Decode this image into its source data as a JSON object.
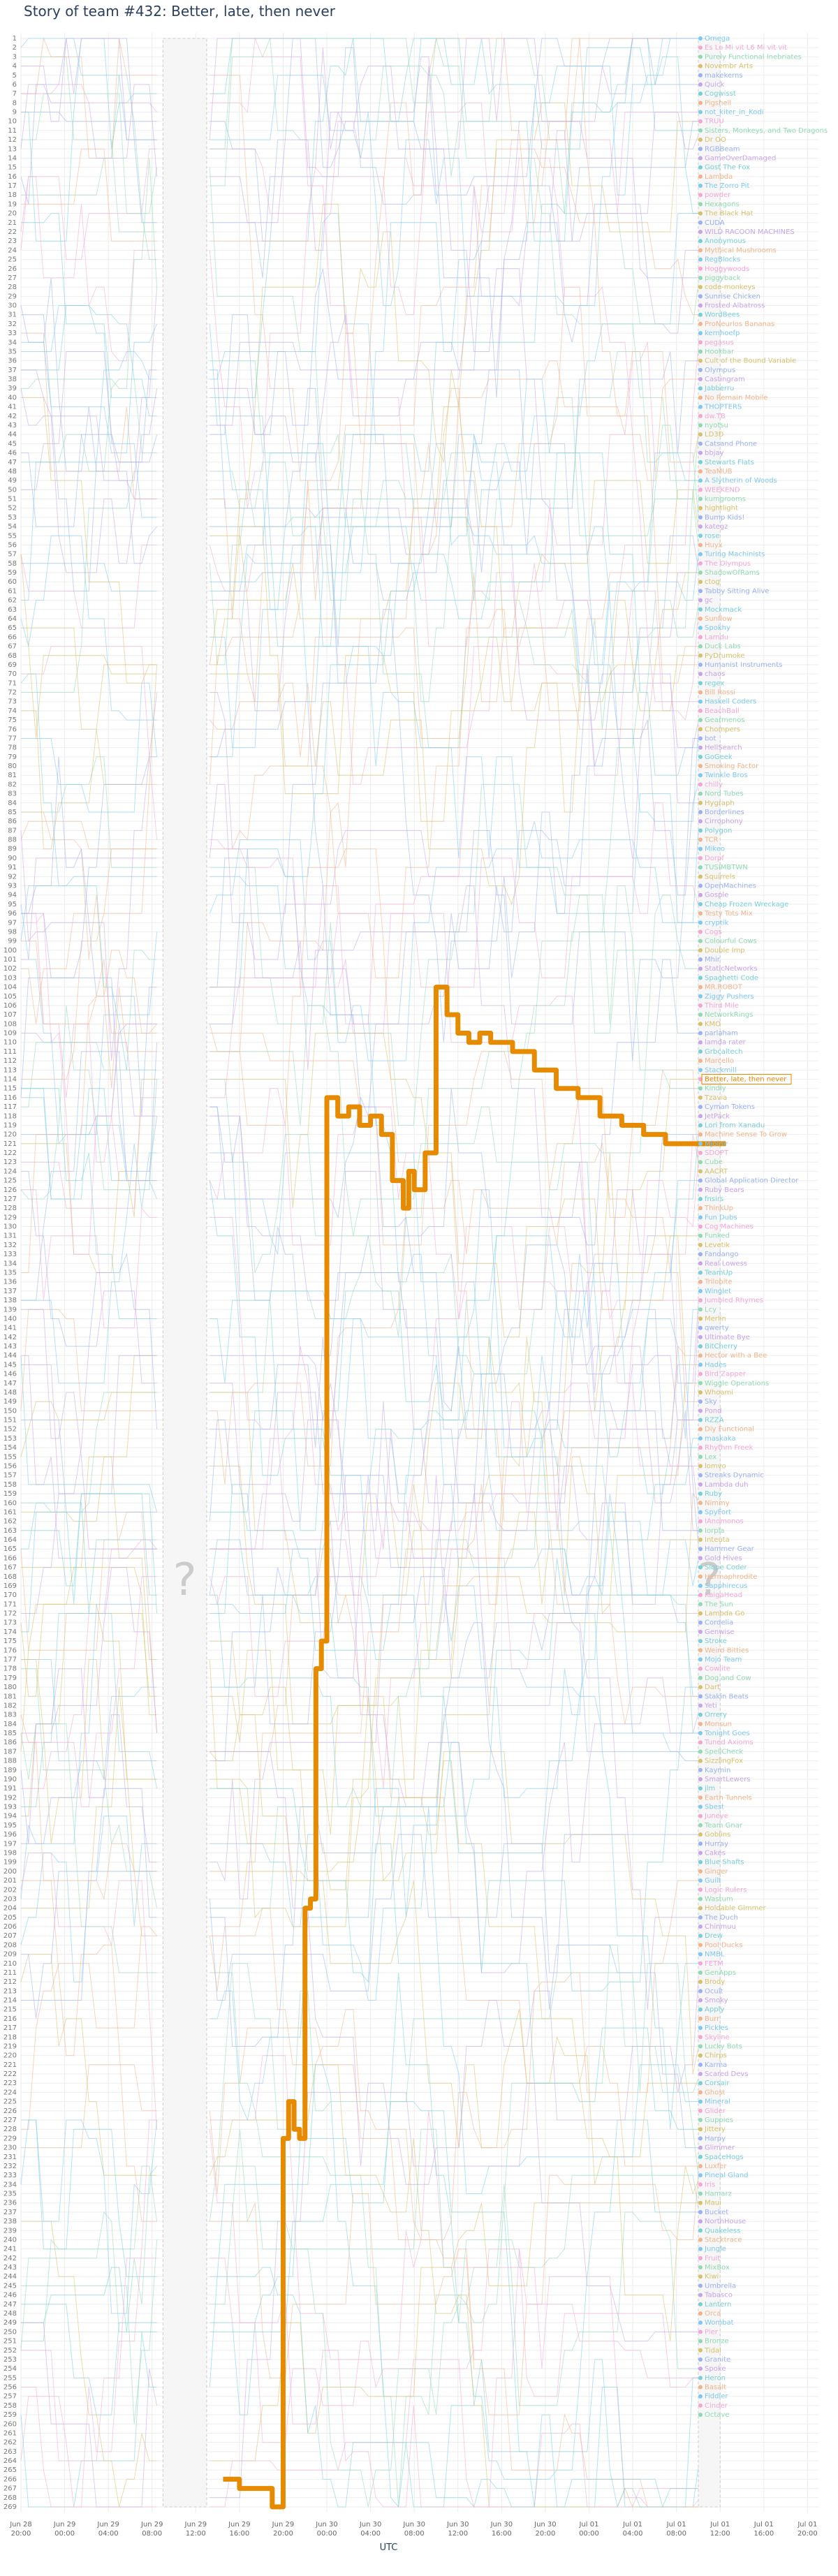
{
  "title": "Story of team #432: Better, late, then never",
  "chart_data": {
    "type": "line",
    "title": "Story of team #432: Better, late, then never",
    "xlabel": "UTC",
    "ylabel": "",
    "rank_range": [
      1,
      269
    ],
    "x_ticks": [
      "Jun 28 20:00",
      "Jun 29 00:00",
      "Jun 29 04:00",
      "Jun 29 08:00",
      "Jun 29 12:00",
      "Jun 29 16:00",
      "Jun 29 20:00",
      "Jun 30 00:00",
      "Jun 30 04:00",
      "Jun 30 08:00",
      "Jun 30 12:00",
      "Jun 30 16:00",
      "Jun 30 20:00",
      "Jul 01 00:00",
      "Jul 01 04:00",
      "Jul 01 08:00",
      "Jul 01 12:00",
      "Jul 01 16:00",
      "Jul 01 20:00"
    ],
    "x_range": [
      "Jun 28 20:00",
      "Jul 01 21:00"
    ],
    "unknown_markers": [
      {
        "label": "?",
        "from": "Jun 29 09:00",
        "to": "Jun 29 13:00"
      },
      {
        "label": "?",
        "from": "Jul 01 10:00",
        "to": "Jul 01 12:00"
      }
    ],
    "highlight": {
      "name": "Better, late, then never",
      "color": "#e68a00",
      "points": [
        [
          "Jun 29 14:30",
          266
        ],
        [
          "Jun 29 15:00",
          266
        ],
        [
          "Jun 29 16:00",
          267
        ],
        [
          "Jun 29 18:00",
          267
        ],
        [
          "Jun 29 19:00",
          269
        ],
        [
          "Jun 29 19:30",
          269
        ],
        [
          "Jun 29 20:00",
          229
        ],
        [
          "Jun 29 20:30",
          225
        ],
        [
          "Jun 29 21:00",
          228
        ],
        [
          "Jun 29 21:30",
          229
        ],
        [
          "Jun 29 22:00",
          204
        ],
        [
          "Jun 29 22:30",
          203
        ],
        [
          "Jun 29 23:00",
          178
        ],
        [
          "Jun 29 23:30",
          175
        ],
        [
          "Jun 30 00:00",
          116
        ],
        [
          "Jun 30 01:00",
          118
        ],
        [
          "Jun 30 02:00",
          117
        ],
        [
          "Jun 30 03:00",
          119
        ],
        [
          "Jun 30 04:00",
          118
        ],
        [
          "Jun 30 05:00",
          120
        ],
        [
          "Jun 30 06:00",
          125
        ],
        [
          "Jun 30 07:00",
          128
        ],
        [
          "Jun 30 07:30",
          124
        ],
        [
          "Jun 30 08:00",
          126
        ],
        [
          "Jun 30 09:00",
          122
        ],
        [
          "Jun 30 10:00",
          104
        ],
        [
          "Jun 30 11:00",
          107
        ],
        [
          "Jun 30 12:00",
          109
        ],
        [
          "Jun 30 13:00",
          110
        ],
        [
          "Jun 30 14:00",
          109
        ],
        [
          "Jun 30 15:00",
          110
        ],
        [
          "Jun 30 17:00",
          111
        ],
        [
          "Jun 30 19:00",
          113
        ],
        [
          "Jun 30 21:00",
          115
        ],
        [
          "Jun 30 23:00",
          116
        ],
        [
          "Jul 01 01:00",
          118
        ],
        [
          "Jul 01 03:00",
          119
        ],
        [
          "Jul 01 05:00",
          120
        ],
        [
          "Jul 01 07:00",
          121
        ],
        [
          "Jul 01 09:00",
          121
        ],
        [
          "Jul 01 12:30",
          121
        ]
      ]
    },
    "team_labels": [
      "Omega",
      "Es Lo Mi vit L6 Mi vit vit",
      "Purely Functional Inebriates",
      "Novembr Arts",
      "makekerns",
      "Quick",
      "Cogwisst",
      "Pigshell",
      "not_kiter_in_Kodi",
      "TRUU",
      "Sisters, Monkeys, and Two Dragons",
      "Dr OO",
      "RGBBeam",
      "GameOverDamaged",
      "Gost The Fox",
      "Lambda",
      "The Zorro Pit",
      "powder",
      "Hexagons",
      "The Black Hat",
      "CUDA",
      "WILD RACOON MACHINES",
      "Anonymous",
      "Mythical Mushrooms",
      "RegBlocks",
      "Hoggywoods",
      "piggyback",
      "code-monkeys",
      "Sunrise Chicken",
      "Frosted Albatross",
      "WordBees",
      "ProNeurlos Bananas",
      "kernhoefp",
      "pegasus",
      "Hookbar",
      "Cult of the Bound Variable",
      "Olympus",
      "Castingram",
      "Jabberru",
      "No Remain Mobile",
      "THOPTERS",
      "dw.TB",
      "nyotsu",
      "LD3D",
      "Catsand Phone",
      "bbjay",
      "Stewarts Flats",
      "TeaMUB",
      "A Slytherin of Woods",
      "WEEKEND",
      "kumgrooms",
      "hightlight",
      "Bump Kids!",
      "kategz",
      "rose",
      "Huyx",
      "Turing Machinists",
      "The Olympus",
      "ShadowOfRams",
      "ctog",
      "Tabby Sitting Alive",
      "gc",
      "Mockmack",
      "Sunflow",
      "Spokhy",
      "Lamdu",
      "Duck Labs",
      "PyDrumoke",
      "Humanist Instruments",
      "chaos",
      "regex",
      "Bill Rossi",
      "Haskell Coders",
      "BeachBall",
      "Gearmenos",
      "Chompers",
      "bot",
      "HellSearch",
      "GoGeek",
      "Smoking Factor",
      "Twinkle Bros",
      "chilly",
      "Nord Tubes",
      "Hygraph",
      "Borderlines",
      "Cirrophony",
      "Polygon",
      "TCR",
      "Mikeo",
      "Dorpf",
      "TUSIMBTWN",
      "Squirrels",
      "OpenMachines",
      "Gosple",
      "Cheap Frozen Wreckage",
      "Testy Tots Mix",
      "cryptik",
      "Cogs",
      "Colourful Cows",
      "Double Imp",
      "Mhir",
      "StaticNetworks",
      "Spaghetti Code",
      "MR.ROBOT",
      "Ziggy Pushers",
      "Third Mile",
      "NetworkRings",
      "KMO",
      "parlaham",
      "lamda rater",
      "Grbcaltech",
      "Marcello",
      "Stackmill",
      "Better, late, then never",
      "Kindly",
      "Tzavia",
      "Cyman Tokens",
      "JetPack",
      "Lori from Xanadu",
      "Machine Sense To Grow",
      "Mjolnir",
      "SDOPT",
      "Cube",
      "AACRT",
      "Global Application Director",
      "Ruby Bears",
      "fnsirs",
      "ThinkUp",
      "Fun Dubs",
      "Cog Machines",
      "Funked",
      "Levetik",
      "Fandango",
      "Real Lowess",
      "TeamUp",
      "Trilobite",
      "Winglet",
      "Jumbled Rhymes",
      "Lcy",
      "Merlin",
      "qwerty",
      "Ultimate Bye",
      "BitCherry",
      "Hector with a Bee",
      "Hades",
      "Bird Zapper",
      "Wiggle Operations",
      "Whoami",
      "Sky",
      "Pond",
      "RZZA",
      "Diy Functional",
      "maskaka",
      "Rhythm Freek",
      "Lex",
      "lomvo",
      "Streaks Dynamic",
      "Lambda duh",
      "Ruby",
      "Nimmy",
      "SpyFort",
      "IAnomonos",
      "Iorpla",
      "Inteuta",
      "Hammer Gear",
      "Gold Hives",
      "Slope Coder",
      "Hermaphrodite",
      "Sapphirecus",
      "KaigaHead",
      "The Sun",
      "Lambda Go",
      "Cordelia",
      "Genwise",
      "Stroke",
      "Weird Bitties",
      "Mojo Team",
      "Cowlite",
      "Dog and Cow",
      "Dart",
      "Stakin Beats",
      "Yeti",
      "Orrery",
      "Monsun",
      "Tonight Goes",
      "Tuned Axioms",
      "SpellCheck",
      "SizzlingFox",
      "Kaymin",
      "SmartLewers",
      "jlm",
      "Earth Tunnels",
      "Sbest",
      "Juneye",
      "Team Gnar",
      "Goblins",
      "Hurray",
      "Cakes",
      "Blue Shafts",
      "Ginger",
      "Guilt",
      "Logic Rulers",
      "Wastum",
      "Holdable Gimmer",
      "The Ouch",
      "Chinmuu",
      "Drew",
      "Pool Ducks",
      "NMBL",
      "FETM",
      "GenApps",
      "Brody",
      "Ocult",
      "Smoky",
      "Apply",
      "Burr",
      "Pickles",
      "Skyline",
      "Lucky Bots",
      "Chirps",
      "Karma",
      "Scared Devs",
      "Corsair",
      "Ghost",
      "Mineral",
      "Glider",
      "Guppies",
      "Jittery",
      "Harpy",
      "Glimmer",
      "SpaceHogs",
      "Luxfer",
      "Pineal Gland",
      "Iris",
      "Hamarz",
      "Maui",
      "Bucket",
      "NorthHouse",
      "Quakeless",
      "Stacktrace",
      "Jungle",
      "Fruit",
      "MixBox",
      "Kiwi",
      "Umbrella",
      "Tabasco",
      "Lantern",
      "Orca",
      "Wombat",
      "Pier",
      "Bronze",
      "Tidal",
      "Granite",
      "Spoke",
      "Heron",
      "Basalt",
      "Fiddler",
      "Cinder",
      "Octave"
    ]
  }
}
